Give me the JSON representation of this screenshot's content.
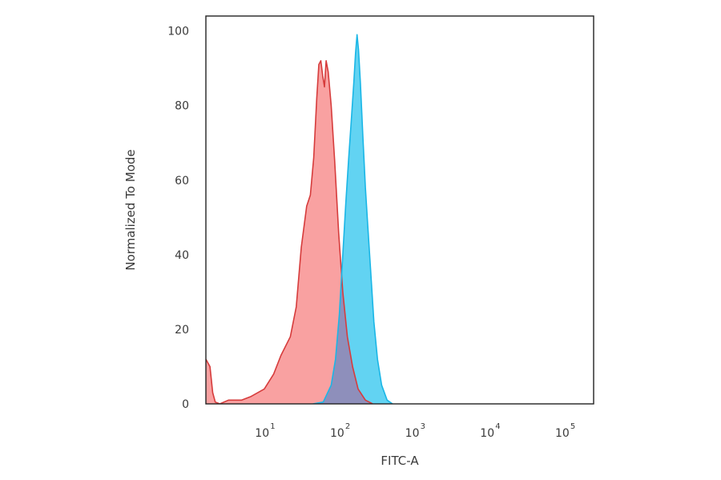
{
  "chart_data": {
    "type": "area",
    "title": "",
    "xlabel": "FITC-A",
    "ylabel": "Normalized To Mode",
    "x_scale": "log",
    "xlim": [
      1.5,
      220000
    ],
    "ylim": [
      0,
      104
    ],
    "yticks": [
      0,
      20,
      40,
      60,
      80,
      100
    ],
    "xticks": [
      {
        "value": 10,
        "base": "10",
        "exp": "1"
      },
      {
        "value": 100,
        "base": "10",
        "exp": "2"
      },
      {
        "value": 1000,
        "base": "10",
        "exp": "3"
      },
      {
        "value": 10000,
        "base": "10",
        "exp": "4"
      },
      {
        "value": 100000,
        "base": "10",
        "exp": "5"
      }
    ],
    "grid": false,
    "series": [
      {
        "fill": "#f9a1a1",
        "stroke": "#d63c3c",
        "points": [
          [
            1.5,
            12
          ],
          [
            1.7,
            10
          ],
          [
            1.85,
            3
          ],
          [
            2.0,
            0.5
          ],
          [
            2.3,
            0
          ],
          [
            3.0,
            1
          ],
          [
            4.5,
            1
          ],
          [
            6.0,
            2
          ],
          [
            9.0,
            4
          ],
          [
            12,
            8
          ],
          [
            15,
            13
          ],
          [
            20,
            18
          ],
          [
            24,
            26
          ],
          [
            28,
            42
          ],
          [
            33,
            53
          ],
          [
            37,
            56
          ],
          [
            41,
            66
          ],
          [
            45,
            82
          ],
          [
            48,
            91
          ],
          [
            51,
            92
          ],
          [
            54,
            88
          ],
          [
            57,
            85
          ],
          [
            60,
            92
          ],
          [
            64,
            89
          ],
          [
            70,
            80
          ],
          [
            78,
            65
          ],
          [
            88,
            46
          ],
          [
            100,
            30
          ],
          [
            115,
            18
          ],
          [
            135,
            10
          ],
          [
            160,
            4
          ],
          [
            200,
            1
          ],
          [
            250,
            0
          ]
        ]
      },
      {
        "fill": "#62d3f2",
        "stroke": "#1ab6e6",
        "points": [
          [
            40,
            0
          ],
          [
            55,
            0.5
          ],
          [
            70,
            5
          ],
          [
            80,
            12
          ],
          [
            90,
            24
          ],
          [
            100,
            40
          ],
          [
            110,
            54
          ],
          [
            120,
            66
          ],
          [
            130,
            76
          ],
          [
            140,
            86
          ],
          [
            148,
            94
          ],
          [
            155,
            99
          ],
          [
            162,
            95
          ],
          [
            172,
            86
          ],
          [
            185,
            72
          ],
          [
            200,
            58
          ],
          [
            215,
            48
          ],
          [
            235,
            36
          ],
          [
            260,
            22
          ],
          [
            290,
            12
          ],
          [
            330,
            5
          ],
          [
            390,
            1
          ],
          [
            460,
            0
          ]
        ]
      }
    ],
    "overlap_fill": "#8e8fbb"
  }
}
